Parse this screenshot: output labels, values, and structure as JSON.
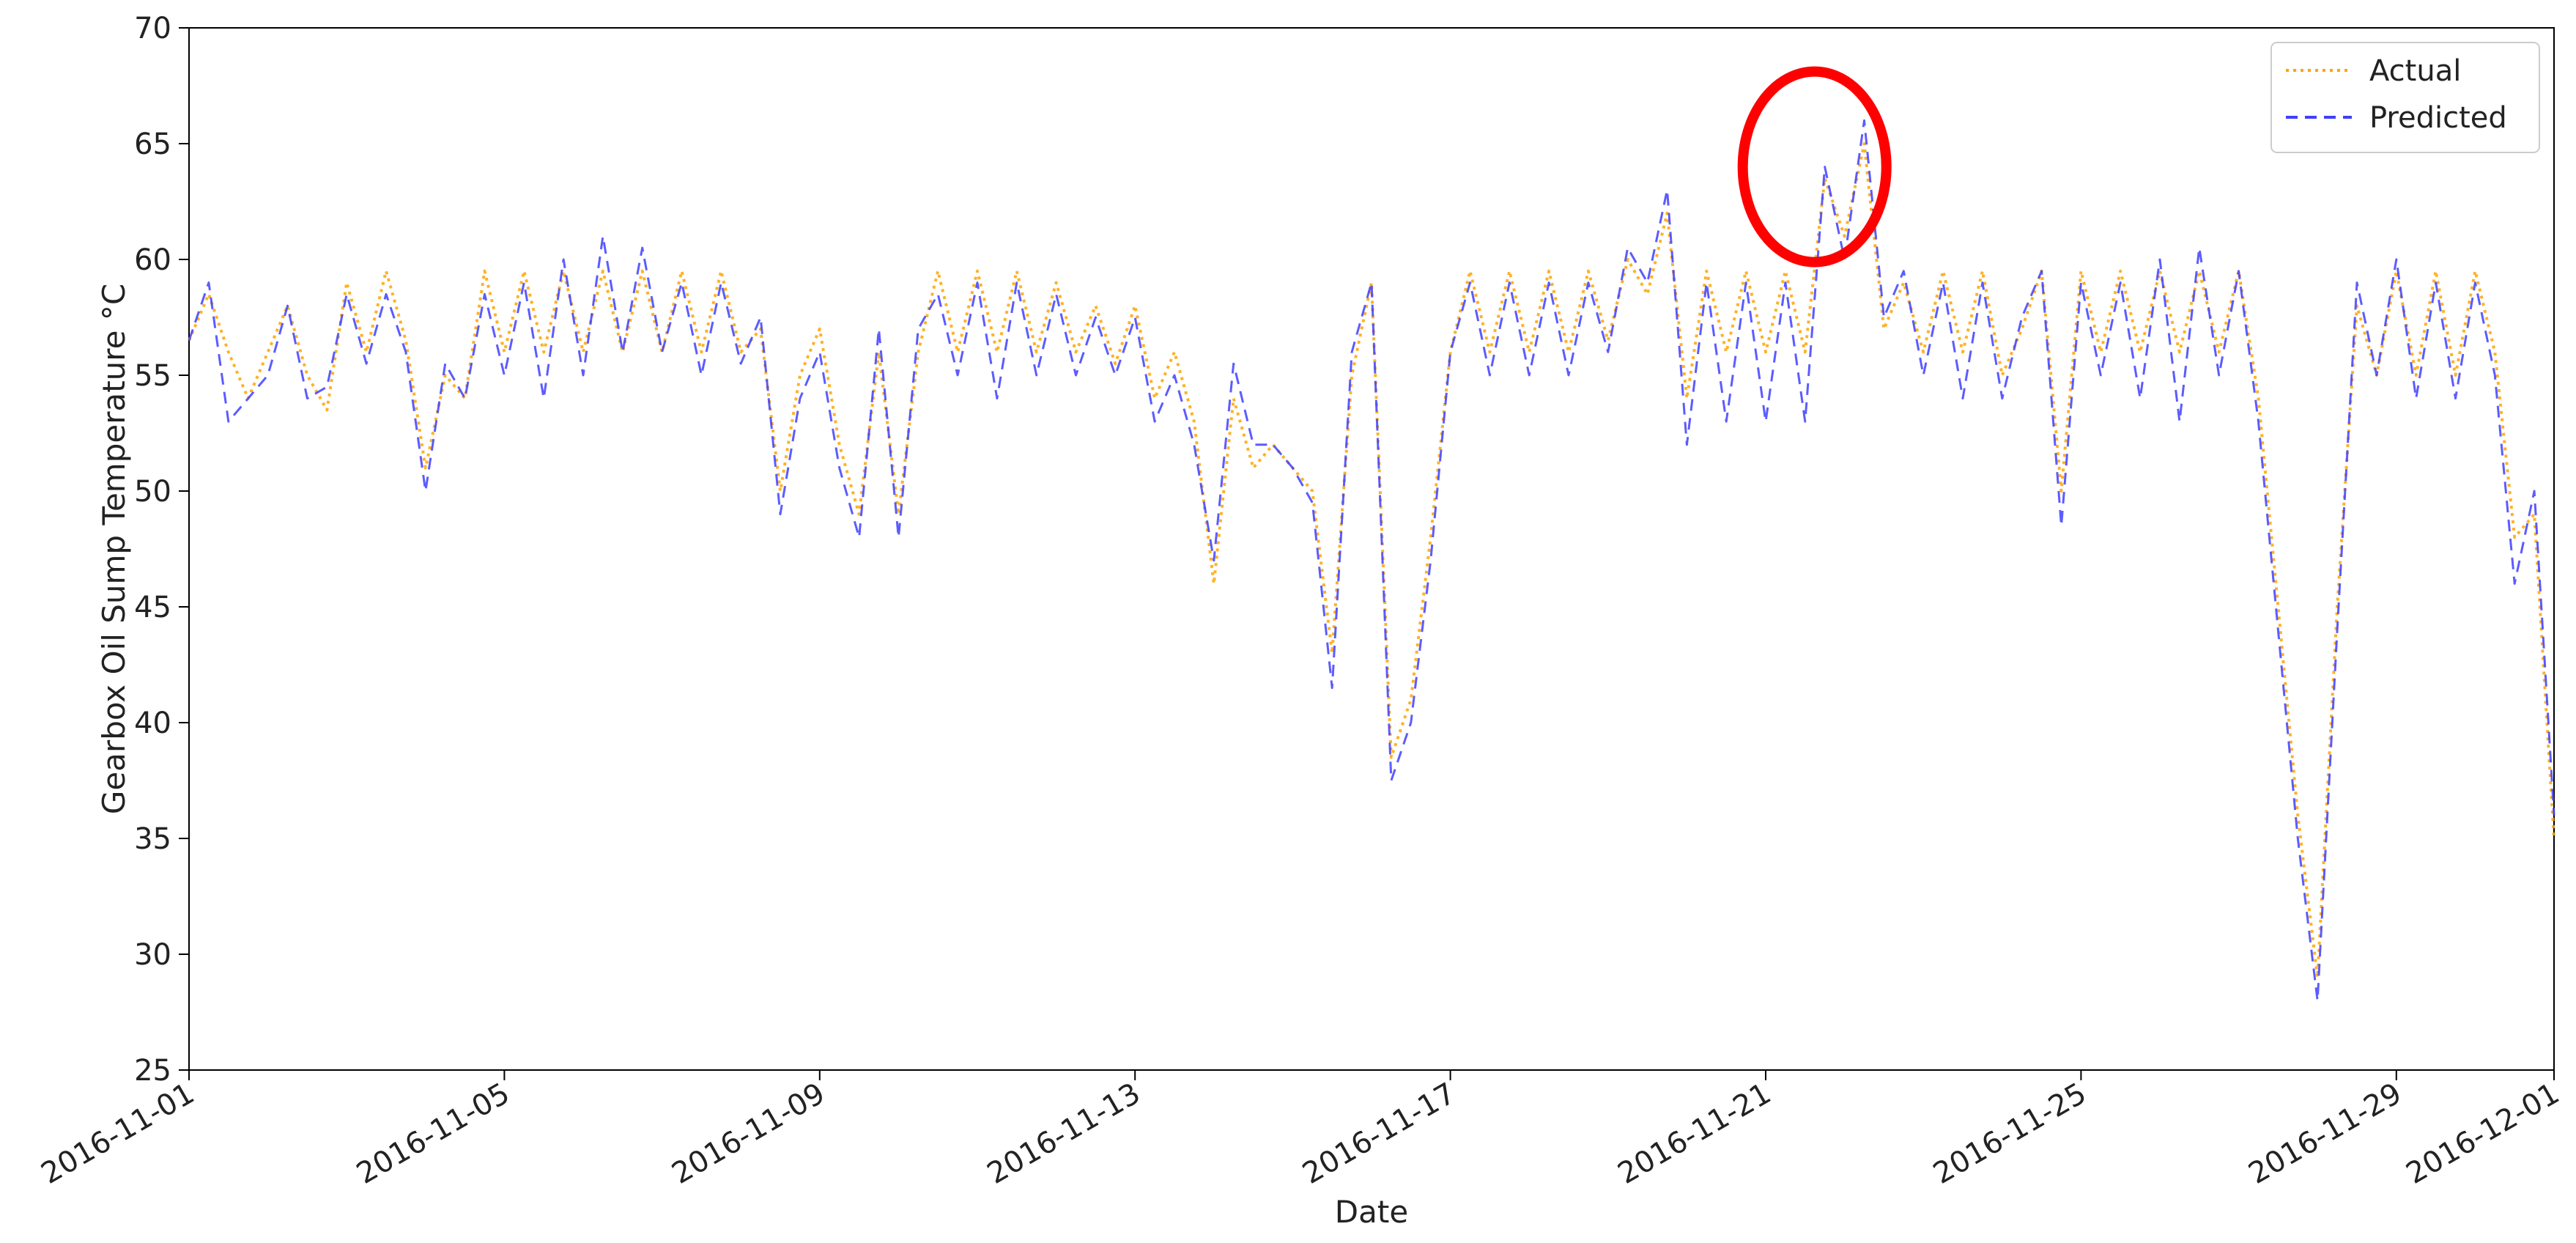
{
  "chart_data": {
    "type": "line",
    "title": "",
    "xlabel": "Date",
    "ylabel": "Gearbox Oil Sump Temperature °C",
    "xlim": [
      "2016-11-01",
      "2016-12-01"
    ],
    "ylim": [
      25,
      70
    ],
    "x_ticks": [
      "2016-11-01",
      "2016-11-05",
      "2016-11-09",
      "2016-11-13",
      "2016-11-17",
      "2016-11-21",
      "2016-11-25",
      "2016-11-29",
      "2016-12-01"
    ],
    "y_ticks": [
      25,
      30,
      35,
      40,
      45,
      50,
      55,
      60,
      65,
      70
    ],
    "grid": false,
    "legend": "top-right",
    "series": [
      {
        "name": "Actual",
        "color": "#FFA500",
        "line_style": "dotted",
        "points": [
          [
            "2016-11-01 00:00",
            56.5
          ],
          [
            "2016-11-01 06:00",
            58.5
          ],
          [
            "2016-11-01 12:00",
            56.0
          ],
          [
            "2016-11-01 18:00",
            54.0
          ],
          [
            "2016-11-02 00:00",
            56.0
          ],
          [
            "2016-11-02 06:00",
            58.0
          ],
          [
            "2016-11-02 12:00",
            55.0
          ],
          [
            "2016-11-02 18:00",
            53.5
          ],
          [
            "2016-11-03 00:00",
            59.0
          ],
          [
            "2016-11-03 06:00",
            56.0
          ],
          [
            "2016-11-03 12:00",
            59.5
          ],
          [
            "2016-11-03 18:00",
            56.5
          ],
          [
            "2016-11-04 00:00",
            51.0
          ],
          [
            "2016-11-04 06:00",
            55.0
          ],
          [
            "2016-11-04 12:00",
            54.0
          ],
          [
            "2016-11-04 18:00",
            59.5
          ],
          [
            "2016-11-05 00:00",
            56.0
          ],
          [
            "2016-11-05 06:00",
            59.5
          ],
          [
            "2016-11-05 12:00",
            56.0
          ],
          [
            "2016-11-05 18:00",
            59.5
          ],
          [
            "2016-11-06 00:00",
            56.0
          ],
          [
            "2016-11-06 06:00",
            59.5
          ],
          [
            "2016-11-06 12:00",
            56.0
          ],
          [
            "2016-11-06 18:00",
            59.5
          ],
          [
            "2016-11-07 00:00",
            56.0
          ],
          [
            "2016-11-07 06:00",
            59.5
          ],
          [
            "2016-11-07 12:00",
            56.0
          ],
          [
            "2016-11-07 18:00",
            59.5
          ],
          [
            "2016-11-08 00:00",
            56.0
          ],
          [
            "2016-11-08 06:00",
            57.0
          ],
          [
            "2016-11-08 12:00",
            50.0
          ],
          [
            "2016-11-08 18:00",
            55.0
          ],
          [
            "2016-11-09 00:00",
            57.0
          ],
          [
            "2016-11-09 06:00",
            52.0
          ],
          [
            "2016-11-09 12:00",
            49.0
          ],
          [
            "2016-11-09 18:00",
            56.0
          ],
          [
            "2016-11-10 00:00",
            49.0
          ],
          [
            "2016-11-10 06:00",
            56.0
          ],
          [
            "2016-11-10 12:00",
            59.5
          ],
          [
            "2016-11-10 18:00",
            56.0
          ],
          [
            "2016-11-11 00:00",
            59.5
          ],
          [
            "2016-11-11 06:00",
            56.0
          ],
          [
            "2016-11-11 12:00",
            59.5
          ],
          [
            "2016-11-11 18:00",
            56.0
          ],
          [
            "2016-11-12 00:00",
            59.0
          ],
          [
            "2016-11-12 06:00",
            56.0
          ],
          [
            "2016-11-12 12:00",
            58.0
          ],
          [
            "2016-11-12 18:00",
            55.5
          ],
          [
            "2016-11-13 00:00",
            58.0
          ],
          [
            "2016-11-13 06:00",
            54.0
          ],
          [
            "2016-11-13 12:00",
            56.0
          ],
          [
            "2016-11-13 18:00",
            53.0
          ],
          [
            "2016-11-14 00:00",
            46.0
          ],
          [
            "2016-11-14 06:00",
            54.0
          ],
          [
            "2016-11-14 12:00",
            51.0
          ],
          [
            "2016-11-14 18:00",
            52.0
          ],
          [
            "2016-11-15 00:00",
            51.0
          ],
          [
            "2016-11-15 06:00",
            50.0
          ],
          [
            "2016-11-15 12:00",
            43.0
          ],
          [
            "2016-11-15 18:00",
            55.0
          ],
          [
            "2016-11-16 00:00",
            59.0
          ],
          [
            "2016-11-16 06:00",
            38.5
          ],
          [
            "2016-11-16 12:00",
            41.0
          ],
          [
            "2016-11-16 18:00",
            48.0
          ],
          [
            "2016-11-17 00:00",
            56.0
          ],
          [
            "2016-11-17 06:00",
            59.5
          ],
          [
            "2016-11-17 12:00",
            56.0
          ],
          [
            "2016-11-17 18:00",
            59.5
          ],
          [
            "2016-11-18 00:00",
            56.0
          ],
          [
            "2016-11-18 06:00",
            59.5
          ],
          [
            "2016-11-18 12:00",
            56.0
          ],
          [
            "2016-11-18 18:00",
            59.5
          ],
          [
            "2016-11-19 00:00",
            56.5
          ],
          [
            "2016-11-19 06:00",
            60.0
          ],
          [
            "2016-11-19 12:00",
            58.5
          ],
          [
            "2016-11-19 18:00",
            62.0
          ],
          [
            "2016-11-20 00:00",
            54.0
          ],
          [
            "2016-11-20 06:00",
            59.5
          ],
          [
            "2016-11-20 12:00",
            56.0
          ],
          [
            "2016-11-20 18:00",
            59.5
          ],
          [
            "2016-11-21 00:00",
            56.0
          ],
          [
            "2016-11-21 06:00",
            59.5
          ],
          [
            "2016-11-21 12:00",
            56.0
          ],
          [
            "2016-11-21 18:00",
            63.5
          ],
          [
            "2016-11-22 00:00",
            61.0
          ],
          [
            "2016-11-22 06:00",
            65.0
          ],
          [
            "2016-11-22 12:00",
            57.0
          ],
          [
            "2016-11-22 18:00",
            59.0
          ],
          [
            "2016-11-23 00:00",
            56.0
          ],
          [
            "2016-11-23 06:00",
            59.5
          ],
          [
            "2016-11-23 12:00",
            56.0
          ],
          [
            "2016-11-23 18:00",
            59.5
          ],
          [
            "2016-11-24 00:00",
            55.0
          ],
          [
            "2016-11-24 06:00",
            57.0
          ],
          [
            "2016-11-24 12:00",
            59.5
          ],
          [
            "2016-11-24 18:00",
            50.0
          ],
          [
            "2016-11-25 00:00",
            59.5
          ],
          [
            "2016-11-25 06:00",
            56.0
          ],
          [
            "2016-11-25 12:00",
            59.5
          ],
          [
            "2016-11-25 18:00",
            56.0
          ],
          [
            "2016-11-26 00:00",
            59.5
          ],
          [
            "2016-11-26 06:00",
            56.0
          ],
          [
            "2016-11-26 12:00",
            59.5
          ],
          [
            "2016-11-26 18:00",
            56.0
          ],
          [
            "2016-11-27 00:00",
            59.5
          ],
          [
            "2016-11-27 06:00",
            54.0
          ],
          [
            "2016-11-27 12:00",
            45.0
          ],
          [
            "2016-11-27 18:00",
            36.0
          ],
          [
            "2016-11-28 00:00",
            29.0
          ],
          [
            "2016-11-28 06:00",
            45.0
          ],
          [
            "2016-11-28 12:00",
            58.0
          ],
          [
            "2016-11-28 18:00",
            55.0
          ],
          [
            "2016-11-29 00:00",
            59.5
          ],
          [
            "2016-11-29 06:00",
            55.0
          ],
          [
            "2016-11-29 12:00",
            59.5
          ],
          [
            "2016-11-29 18:00",
            55.0
          ],
          [
            "2016-11-30 00:00",
            59.5
          ],
          [
            "2016-11-30 06:00",
            56.0
          ],
          [
            "2016-11-30 12:00",
            48.0
          ],
          [
            "2016-11-30 18:00",
            49.0
          ],
          [
            "2016-12-01 00:00",
            35.0
          ]
        ]
      },
      {
        "name": "Predicted",
        "color": "#3F3FFF",
        "line_style": "dashed",
        "points": [
          [
            "2016-11-01 00:00",
            56.5
          ],
          [
            "2016-11-01 06:00",
            59.0
          ],
          [
            "2016-11-01 12:00",
            53.0
          ],
          [
            "2016-11-01 18:00",
            54.0
          ],
          [
            "2016-11-02 00:00",
            55.0
          ],
          [
            "2016-11-02 06:00",
            58.0
          ],
          [
            "2016-11-02 12:00",
            54.0
          ],
          [
            "2016-11-02 18:00",
            54.5
          ],
          [
            "2016-11-03 00:00",
            58.5
          ],
          [
            "2016-11-03 06:00",
            55.5
          ],
          [
            "2016-11-03 12:00",
            58.5
          ],
          [
            "2016-11-03 18:00",
            56.0
          ],
          [
            "2016-11-04 00:00",
            50.0
          ],
          [
            "2016-11-04 06:00",
            55.5
          ],
          [
            "2016-11-04 12:00",
            54.0
          ],
          [
            "2016-11-04 18:00",
            58.5
          ],
          [
            "2016-11-05 00:00",
            55.0
          ],
          [
            "2016-11-05 06:00",
            59.0
          ],
          [
            "2016-11-05 12:00",
            54.0
          ],
          [
            "2016-11-05 18:00",
            60.0
          ],
          [
            "2016-11-06 00:00",
            55.0
          ],
          [
            "2016-11-06 06:00",
            61.0
          ],
          [
            "2016-11-06 12:00",
            56.0
          ],
          [
            "2016-11-06 18:00",
            60.5
          ],
          [
            "2016-11-07 00:00",
            56.0
          ],
          [
            "2016-11-07 06:00",
            59.0
          ],
          [
            "2016-11-07 12:00",
            55.0
          ],
          [
            "2016-11-07 18:00",
            59.0
          ],
          [
            "2016-11-08 00:00",
            55.5
          ],
          [
            "2016-11-08 06:00",
            57.5
          ],
          [
            "2016-11-08 12:00",
            49.0
          ],
          [
            "2016-11-08 18:00",
            54.0
          ],
          [
            "2016-11-09 00:00",
            56.0
          ],
          [
            "2016-11-09 06:00",
            51.0
          ],
          [
            "2016-11-09 12:00",
            48.0
          ],
          [
            "2016-11-09 18:00",
            57.0
          ],
          [
            "2016-11-10 00:00",
            48.0
          ],
          [
            "2016-11-10 06:00",
            57.0
          ],
          [
            "2016-11-10 12:00",
            58.5
          ],
          [
            "2016-11-10 18:00",
            55.0
          ],
          [
            "2016-11-11 00:00",
            59.0
          ],
          [
            "2016-11-11 06:00",
            54.0
          ],
          [
            "2016-11-11 12:00",
            59.0
          ],
          [
            "2016-11-11 18:00",
            55.0
          ],
          [
            "2016-11-12 00:00",
            58.5
          ],
          [
            "2016-11-12 06:00",
            55.0
          ],
          [
            "2016-11-12 12:00",
            57.5
          ],
          [
            "2016-11-12 18:00",
            55.0
          ],
          [
            "2016-11-13 00:00",
            57.5
          ],
          [
            "2016-11-13 06:00",
            53.0
          ],
          [
            "2016-11-13 12:00",
            55.0
          ],
          [
            "2016-11-13 18:00",
            52.0
          ],
          [
            "2016-11-14 00:00",
            47.0
          ],
          [
            "2016-11-14 06:00",
            55.5
          ],
          [
            "2016-11-14 12:00",
            52.0
          ],
          [
            "2016-11-14 18:00",
            52.0
          ],
          [
            "2016-11-15 00:00",
            51.0
          ],
          [
            "2016-11-15 06:00",
            49.5
          ],
          [
            "2016-11-15 12:00",
            41.5
          ],
          [
            "2016-11-15 18:00",
            56.0
          ],
          [
            "2016-11-16 00:00",
            59.0
          ],
          [
            "2016-11-16 06:00",
            37.5
          ],
          [
            "2016-11-16 12:00",
            40.0
          ],
          [
            "2016-11-16 18:00",
            47.0
          ],
          [
            "2016-11-17 00:00",
            56.0
          ],
          [
            "2016-11-17 06:00",
            59.0
          ],
          [
            "2016-11-17 12:00",
            55.0
          ],
          [
            "2016-11-17 18:00",
            59.0
          ],
          [
            "2016-11-18 00:00",
            55.0
          ],
          [
            "2016-11-18 06:00",
            59.0
          ],
          [
            "2016-11-18 12:00",
            55.0
          ],
          [
            "2016-11-18 18:00",
            59.0
          ],
          [
            "2016-11-19 00:00",
            56.0
          ],
          [
            "2016-11-19 06:00",
            60.5
          ],
          [
            "2016-11-19 12:00",
            59.0
          ],
          [
            "2016-11-19 18:00",
            63.0
          ],
          [
            "2016-11-20 00:00",
            52.0
          ],
          [
            "2016-11-20 06:00",
            59.0
          ],
          [
            "2016-11-20 12:00",
            53.0
          ],
          [
            "2016-11-20 18:00",
            59.0
          ],
          [
            "2016-11-21 00:00",
            53.0
          ],
          [
            "2016-11-21 06:00",
            59.0
          ],
          [
            "2016-11-21 12:00",
            53.0
          ],
          [
            "2016-11-21 18:00",
            64.0
          ],
          [
            "2016-11-22 00:00",
            60.0
          ],
          [
            "2016-11-22 06:00",
            66.0
          ],
          [
            "2016-11-22 12:00",
            57.5
          ],
          [
            "2016-11-22 18:00",
            59.5
          ],
          [
            "2016-11-23 00:00",
            55.0
          ],
          [
            "2016-11-23 06:00",
            59.0
          ],
          [
            "2016-11-23 12:00",
            54.0
          ],
          [
            "2016-11-23 18:00",
            59.0
          ],
          [
            "2016-11-24 00:00",
            54.0
          ],
          [
            "2016-11-24 06:00",
            57.5
          ],
          [
            "2016-11-24 12:00",
            59.5
          ],
          [
            "2016-11-24 18:00",
            48.5
          ],
          [
            "2016-11-25 00:00",
            59.0
          ],
          [
            "2016-11-25 06:00",
            55.0
          ],
          [
            "2016-11-25 12:00",
            59.0
          ],
          [
            "2016-11-25 18:00",
            54.0
          ],
          [
            "2016-11-26 00:00",
            60.0
          ],
          [
            "2016-11-26 06:00",
            53.0
          ],
          [
            "2016-11-26 12:00",
            60.5
          ],
          [
            "2016-11-26 18:00",
            55.0
          ],
          [
            "2016-11-27 00:00",
            59.5
          ],
          [
            "2016-11-27 06:00",
            53.0
          ],
          [
            "2016-11-27 12:00",
            44.0
          ],
          [
            "2016-11-27 18:00",
            35.0
          ],
          [
            "2016-11-28 00:00",
            28.0
          ],
          [
            "2016-11-28 06:00",
            44.0
          ],
          [
            "2016-11-28 12:00",
            59.0
          ],
          [
            "2016-11-28 18:00",
            55.0
          ],
          [
            "2016-11-29 00:00",
            60.0
          ],
          [
            "2016-11-29 06:00",
            54.0
          ],
          [
            "2016-11-29 12:00",
            59.0
          ],
          [
            "2016-11-29 18:00",
            54.0
          ],
          [
            "2016-11-30 00:00",
            59.0
          ],
          [
            "2016-11-30 06:00",
            55.0
          ],
          [
            "2016-11-30 12:00",
            46.0
          ],
          [
            "2016-11-30 18:00",
            50.0
          ],
          [
            "2016-12-01 00:00",
            36.0
          ]
        ]
      }
    ],
    "annotations": [
      {
        "type": "ellipse",
        "color": "#FF0000",
        "center": [
          "2016-11-21 18:00",
          64.0
        ]
      }
    ]
  }
}
